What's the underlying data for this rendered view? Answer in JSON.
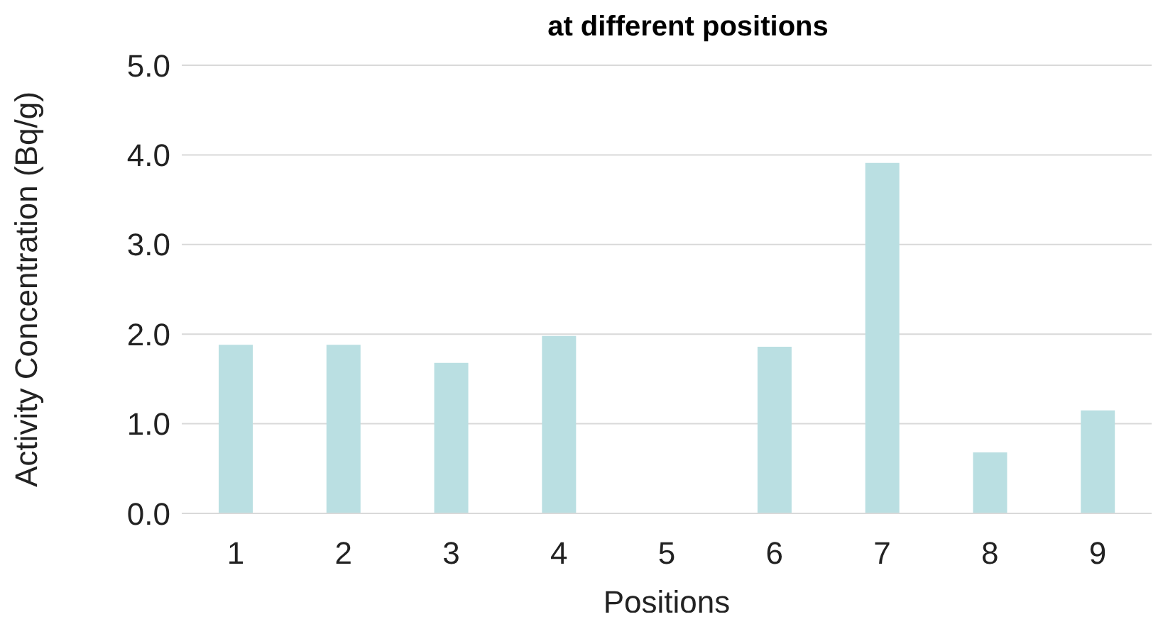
{
  "chart_data": {
    "type": "bar",
    "title": "at different positions",
    "xlabel": "Positions",
    "ylabel": "Activity Concentration (Bq/g)",
    "categories": [
      "1",
      "2",
      "3",
      "4",
      "5",
      "6",
      "7",
      "8",
      "9"
    ],
    "values": [
      1.88,
      1.88,
      1.68,
      1.98,
      0,
      1.86,
      3.91,
      0.68,
      1.15
    ],
    "color": "#badfe2",
    "ylim": [
      0,
      5
    ],
    "yticks": [
      {
        "value": 0,
        "label": "0.0"
      },
      {
        "value": 1,
        "label": "1.0"
      },
      {
        "value": 2,
        "label": "2.0"
      },
      {
        "value": 3,
        "label": "3.0"
      },
      {
        "value": 4,
        "label": "4.0"
      },
      {
        "value": 5,
        "label": "5.0"
      }
    ],
    "grid": "y"
  }
}
